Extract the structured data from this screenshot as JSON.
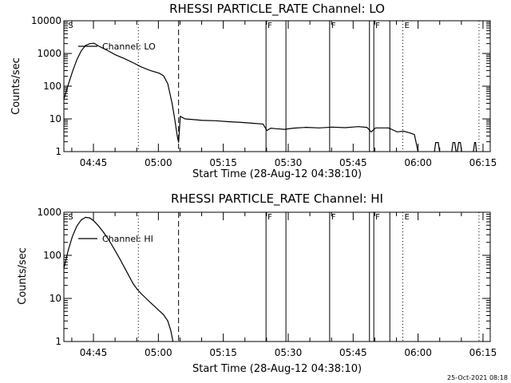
{
  "footer_timestamp": "25-Oct-2021 08:18",
  "chart_data": [
    {
      "type": "line",
      "title": "RHESSI PARTICLE_RATE Channel: LO",
      "xlabel": "Start Time (28-Aug-12 04:38:10)",
      "ylabel": "Counts/sec",
      "x_unit": "minutes after 04:38:10",
      "xlim": [
        0,
        98.5
      ],
      "ylim": [
        1,
        10000
      ],
      "y_scale": "log",
      "x_ticks": [
        "04:45",
        "05:00",
        "05:15",
        "05:30",
        "05:45",
        "06:00",
        "06:15"
      ],
      "x_tick_values": [
        6.83,
        21.83,
        36.83,
        51.83,
        66.83,
        81.83,
        96.83
      ],
      "y_ticks": [
        "1",
        "10",
        "100",
        "1000",
        "10000"
      ],
      "legend": "Channel: LO",
      "legend_placement": "top-left",
      "markers": [
        {
          "label": "S",
          "x": 0.6,
          "style": "text"
        },
        {
          "label": "",
          "x": 17.2,
          "style": "dotted"
        },
        {
          "label": "",
          "x": 26.5,
          "style": "dashed"
        },
        {
          "label": "F",
          "x": 46.7,
          "style": "solid"
        },
        {
          "label": "",
          "x": 51.3,
          "style": "solid"
        },
        {
          "label": "F",
          "x": 61.4,
          "style": "solid"
        },
        {
          "label": "",
          "x": 70.6,
          "style": "solid"
        },
        {
          "label": "F",
          "x": 71.6,
          "style": "solid"
        },
        {
          "label": "",
          "x": 75.3,
          "style": "solid"
        },
        {
          "label": "E",
          "x": 78.3,
          "style": "dotted"
        },
        {
          "label": "",
          "x": 95.9,
          "style": "dotted"
        }
      ],
      "series": [
        {
          "values": [
            [
              0,
              40
            ],
            [
              1,
              110
            ],
            [
              2,
              280
            ],
            [
              3,
              650
            ],
            [
              4,
              1200
            ],
            [
              5,
              1750
            ],
            [
              6,
              2000
            ],
            [
              7,
              2050
            ],
            [
              8,
              1700
            ],
            [
              10,
              1250
            ],
            [
              12,
              900
            ],
            [
              14,
              700
            ],
            [
              16,
              520
            ],
            [
              18,
              380
            ],
            [
              20,
              300
            ],
            [
              22,
              250
            ],
            [
              23,
              210
            ],
            [
              24,
              120
            ],
            [
              25,
              30
            ],
            [
              25.6,
              10
            ],
            [
              26.2,
              3
            ],
            [
              26.5,
              1.9
            ],
            [
              26.9,
              12
            ],
            [
              28,
              10
            ],
            [
              30,
              9.5
            ],
            [
              32,
              9
            ],
            [
              35,
              8.8
            ],
            [
              38,
              8.2
            ],
            [
              41,
              7.8
            ],
            [
              44,
              7.3
            ],
            [
              46,
              7
            ],
            [
              46.9,
              4.4
            ],
            [
              47.8,
              5.2
            ],
            [
              49,
              5
            ],
            [
              51,
              4.8
            ],
            [
              53,
              5.2
            ],
            [
              56,
              5.5
            ],
            [
              59,
              5.3
            ],
            [
              62,
              5.6
            ],
            [
              65,
              5.4
            ],
            [
              68,
              5.8
            ],
            [
              70,
              5.5
            ],
            [
              71,
              4
            ],
            [
              72,
              5.3
            ],
            [
              75,
              5.3
            ],
            [
              77,
              4
            ],
            [
              78.5,
              4.2
            ],
            [
              80,
              3.7
            ],
            [
              81,
              3.3
            ],
            [
              81.8,
              1
            ]
          ]
        },
        {
          "segments": [
            [
              [
                85.6,
                1
              ],
              [
                85.9,
                1.9
              ],
              [
                86.5,
                1.9
              ],
              [
                86.8,
                1
              ]
            ],
            [
              [
                89.6,
                1
              ],
              [
                89.9,
                1.9
              ],
              [
                90.3,
                1.9
              ],
              [
                90.6,
                1
              ]
            ],
            [
              [
                90.9,
                1
              ],
              [
                91.2,
                1.9
              ],
              [
                91.6,
                1.9
              ],
              [
                91.9,
                1
              ]
            ],
            [
              [
                94.6,
                1
              ],
              [
                94.9,
                1.9
              ],
              [
                95.1,
                1.9
              ],
              [
                95.3,
                1
              ]
            ]
          ]
        }
      ]
    },
    {
      "type": "line",
      "title": "RHESSI PARTICLE_RATE Channel: HI",
      "xlabel": "Start Time (28-Aug-12 04:38:10)",
      "ylabel": "Counts/sec",
      "x_unit": "minutes after 04:38:10",
      "xlim": [
        0,
        98.5
      ],
      "ylim": [
        1,
        1000
      ],
      "y_scale": "log",
      "x_ticks": [
        "04:45",
        "05:00",
        "05:15",
        "05:30",
        "05:45",
        "06:00",
        "06:15"
      ],
      "x_tick_values": [
        6.83,
        21.83,
        36.83,
        51.83,
        66.83,
        81.83,
        96.83
      ],
      "y_ticks": [
        "1",
        "10",
        "100",
        "1000"
      ],
      "legend": "Channel: HI",
      "legend_placement": "top-left",
      "markers": [
        {
          "label": "S",
          "x": 0.6,
          "style": "text"
        },
        {
          "label": "",
          "x": 17.2,
          "style": "dotted"
        },
        {
          "label": "",
          "x": 26.5,
          "style": "dashed"
        },
        {
          "label": "F",
          "x": 46.7,
          "style": "solid"
        },
        {
          "label": "",
          "x": 51.3,
          "style": "solid"
        },
        {
          "label": "F",
          "x": 61.4,
          "style": "solid"
        },
        {
          "label": "",
          "x": 70.6,
          "style": "solid"
        },
        {
          "label": "F",
          "x": 71.6,
          "style": "solid"
        },
        {
          "label": "",
          "x": 75.3,
          "style": "solid"
        },
        {
          "label": "E",
          "x": 78.3,
          "style": "dotted"
        },
        {
          "label": "",
          "x": 95.9,
          "style": "dotted"
        }
      ],
      "series": [
        {
          "values": [
            [
              0,
              50
            ],
            [
              1,
              130
            ],
            [
              2,
              280
            ],
            [
              3,
              480
            ],
            [
              4,
              660
            ],
            [
              5,
              760
            ],
            [
              6,
              740
            ],
            [
              7,
              620
            ],
            [
              8,
              480
            ],
            [
              9,
              360
            ],
            [
              10,
              260
            ],
            [
              11,
              180
            ],
            [
              12,
              120
            ],
            [
              13,
              80
            ],
            [
              14,
              52
            ],
            [
              15,
              34
            ],
            [
              16,
              22
            ],
            [
              17,
              16
            ],
            [
              18,
              12.5
            ],
            [
              19,
              10
            ],
            [
              20,
              8
            ],
            [
              21,
              6.5
            ],
            [
              22,
              5.2
            ],
            [
              23,
              4.2
            ],
            [
              24,
              3
            ],
            [
              24.7,
              1.8
            ],
            [
              25.2,
              1
            ]
          ]
        }
      ]
    }
  ]
}
